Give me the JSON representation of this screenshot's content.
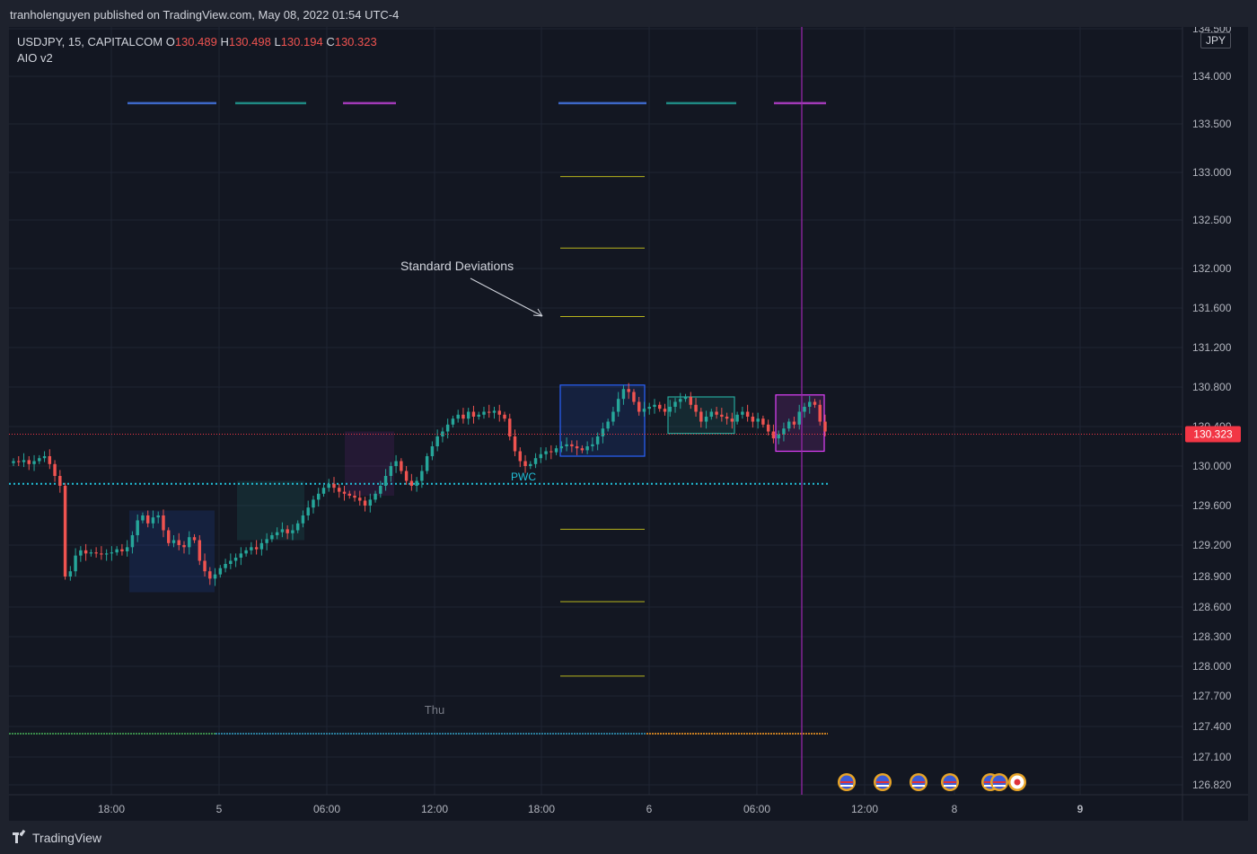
{
  "header": {
    "publisher_line": "tranholenguyen published on TradingView.com, May 08, 2022 01:54 UTC-4"
  },
  "legend": {
    "symbol": "USDJPY, 15, CAPITALCOM",
    "o_label": "O",
    "o_value": "130.489",
    "h_label": "H",
    "h_value": "130.498",
    "l_label": "L",
    "l_value": "130.194",
    "c_label": "C",
    "c_value": "130.323",
    "indicator": "AIO v2"
  },
  "currency_badge": "JPY",
  "footer": {
    "brand": "TradingView"
  },
  "colors": {
    "up": "#26a69a",
    "down": "#ef5350",
    "background": "#131722",
    "grid": "#1f2433",
    "pwc": "#22c0d8",
    "stdev": "#b7b41c",
    "price_label": "#f23645"
  },
  "chart_data": {
    "type": "candlestick",
    "symbol": "USDJPY",
    "timeframe": "15",
    "y_axis_ticks": [
      "134.500",
      "134.000",
      "133.500",
      "133.000",
      "132.500",
      "132.000",
      "131.600",
      "131.200",
      "130.800",
      "130.400",
      "130.000",
      "129.600",
      "129.200",
      "128.900",
      "128.600",
      "128.300",
      "128.000",
      "127.700",
      "127.400",
      "127.100",
      "126.820"
    ],
    "x_axis_ticks": [
      "18:00",
      "5",
      "06:00",
      "12:00",
      "18:00",
      "6",
      "06:00",
      "12:00",
      "8",
      "9"
    ],
    "last_price": "130.323",
    "annotations": {
      "pwc_label": "PWC",
      "pwc_value": 129.82,
      "note": "Standard Deviations",
      "day_label": "Thu"
    },
    "std_dev_levels": [
      132.95,
      132.22,
      131.52,
      129.36,
      128.66,
      127.95
    ],
    "levels": {
      "top_markers": 133.7,
      "bottom_line": 127.4
    },
    "boxes": [
      {
        "kind": "asia",
        "top": 129.55,
        "bottom": 128.75,
        "color": "#2962ff"
      },
      {
        "kind": "london",
        "top": 129.85,
        "bottom": 129.25,
        "color": "#26a69a"
      },
      {
        "kind": "ny",
        "top": 130.35,
        "bottom": 129.7,
        "color": "#9c27b0"
      },
      {
        "kind": "asia",
        "top": 130.82,
        "bottom": 130.1,
        "color": "#2962ff"
      },
      {
        "kind": "london",
        "top": 130.7,
        "bottom": 130.33,
        "color": "#26a69a"
      },
      {
        "kind": "ny",
        "top": 130.72,
        "bottom": 130.15,
        "color": "#e040fb"
      }
    ],
    "closes": [
      130.05,
      130.04,
      130.06,
      130.02,
      130.05,
      130.08,
      130.1,
      130.02,
      129.9,
      129.8,
      128.9,
      128.95,
      129.1,
      129.15,
      129.12,
      129.13,
      129.12,
      129.11,
      129.12,
      129.13,
      129.16,
      129.14,
      129.18,
      129.3,
      129.45,
      129.5,
      129.42,
      129.48,
      129.5,
      129.35,
      129.22,
      129.25,
      129.2,
      129.18,
      129.28,
      129.25,
      129.05,
      128.95,
      128.88,
      128.92,
      128.98,
      129.02,
      129.05,
      129.08,
      129.12,
      129.15,
      129.18,
      129.16,
      129.22,
      129.26,
      129.3,
      129.33,
      129.36,
      129.32,
      129.35,
      129.42,
      129.5,
      129.58,
      129.66,
      129.72,
      129.78,
      129.82,
      129.78,
      129.74,
      129.72,
      129.7,
      129.68,
      129.65,
      129.6,
      129.66,
      129.72,
      129.8,
      129.9,
      130.0,
      130.05,
      129.95,
      129.85,
      129.8,
      129.85,
      129.95,
      130.1,
      130.2,
      130.3,
      130.35,
      130.42,
      130.48,
      130.52,
      130.48,
      130.55,
      130.5,
      130.52,
      130.55,
      130.54,
      130.56,
      130.52,
      130.48,
      130.3,
      130.15,
      130.05,
      130.0,
      130.02,
      130.08,
      130.12,
      130.15,
      130.14,
      130.18,
      130.2,
      130.22,
      130.2,
      130.18,
      130.16,
      130.2,
      130.22,
      130.3,
      130.38,
      130.45,
      130.55,
      130.68,
      130.78,
      130.75,
      130.65,
      130.55,
      130.58,
      130.6,
      130.62,
      130.58,
      130.55,
      130.6,
      130.65,
      130.68,
      130.7,
      130.62,
      130.55,
      130.45,
      130.5,
      130.55,
      130.52,
      130.5,
      130.48,
      130.45,
      130.52,
      130.55,
      130.5,
      130.45,
      130.48,
      130.42,
      130.35,
      130.28,
      130.32,
      130.38,
      130.45,
      130.42,
      130.55,
      130.6,
      130.65,
      130.62,
      130.45,
      130.35
    ]
  }
}
